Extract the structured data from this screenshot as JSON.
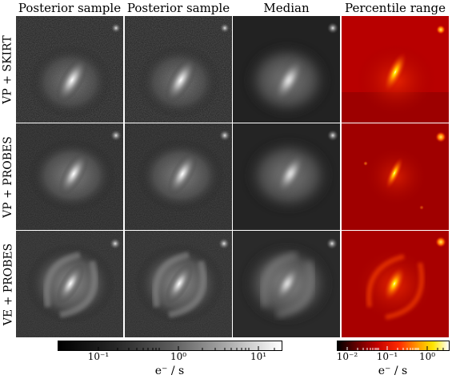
{
  "column_titles": [
    "Posterior sample",
    "Posterior sample",
    "Median",
    "Percentile range"
  ],
  "row_labels": [
    "VP + SKIRT",
    "VP + PROBES",
    "VE + PROBES"
  ],
  "colorbars": {
    "gray": {
      "tick_labels": [
        "10⁻¹",
        "10⁰",
        "10¹"
      ],
      "unit": "e⁻ / s",
      "colormap": "gray"
    },
    "hot": {
      "tick_labels": [
        "10⁻²",
        "10⁻¹",
        "10⁰"
      ],
      "unit": "e⁻ / s",
      "colormap": "hot"
    }
  }
}
